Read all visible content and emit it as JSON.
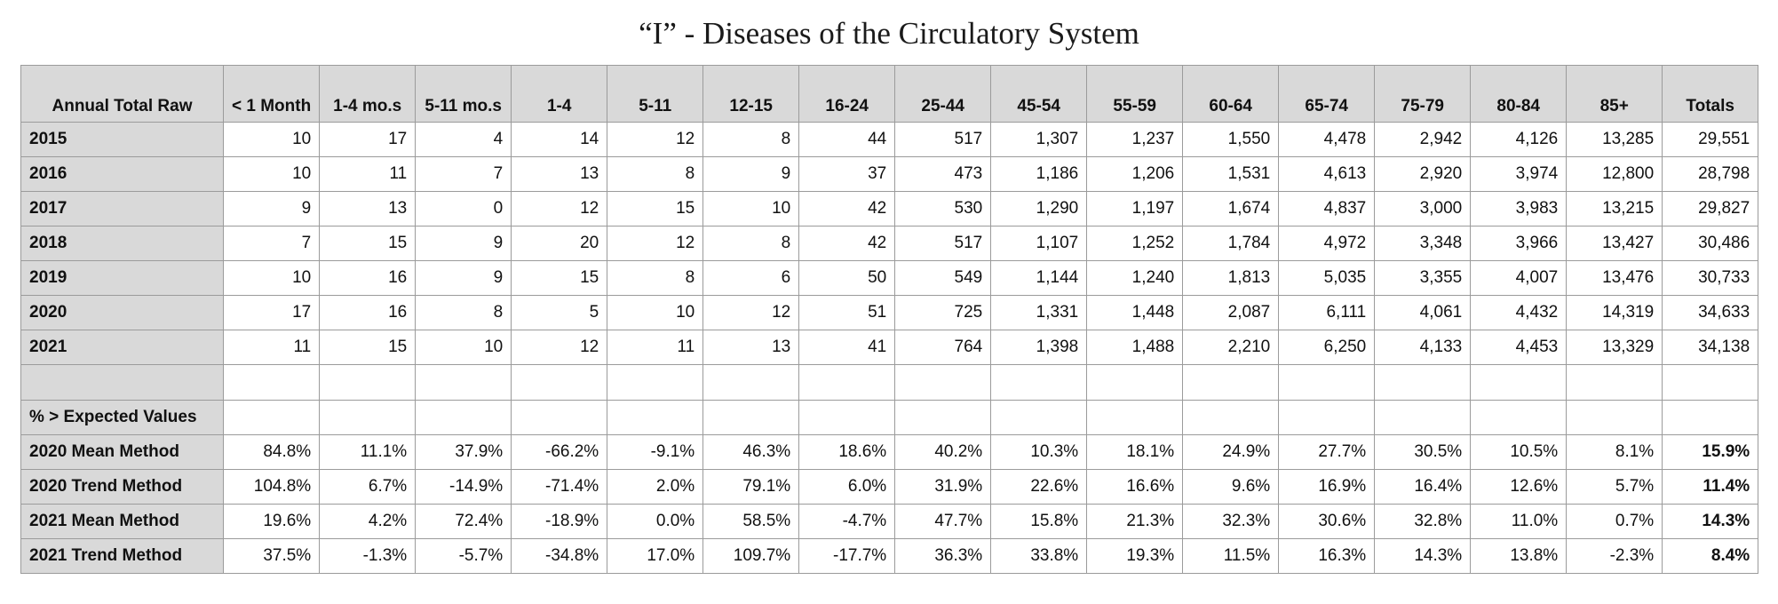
{
  "title": "“I” - Diseases of the Circulatory System",
  "table": {
    "corner_label": "Annual Total Raw",
    "columns": [
      "< 1\nMonth",
      "1-4 mo.s",
      "5-11\nmo.s",
      "1-4",
      "5-11",
      "12-15",
      "16-24",
      "25-44",
      "45-54",
      "55-59",
      "60-64",
      "65-74",
      "75-79",
      "80-84",
      "85+",
      "Totals"
    ],
    "raw_rows": [
      {
        "label": "2015",
        "values": [
          "10",
          "17",
          "4",
          "14",
          "12",
          "8",
          "44",
          "517",
          "1,307",
          "1,237",
          "1,550",
          "4,478",
          "2,942",
          "4,126",
          "13,285",
          "29,551"
        ]
      },
      {
        "label": "2016",
        "values": [
          "10",
          "11",
          "7",
          "13",
          "8",
          "9",
          "37",
          "473",
          "1,186",
          "1,206",
          "1,531",
          "4,613",
          "2,920",
          "3,974",
          "12,800",
          "28,798"
        ]
      },
      {
        "label": "2017",
        "values": [
          "9",
          "13",
          "0",
          "12",
          "15",
          "10",
          "42",
          "530",
          "1,290",
          "1,197",
          "1,674",
          "4,837",
          "3,000",
          "3,983",
          "13,215",
          "29,827"
        ]
      },
      {
        "label": "2018",
        "values": [
          "7",
          "15",
          "9",
          "20",
          "12",
          "8",
          "42",
          "517",
          "1,107",
          "1,252",
          "1,784",
          "4,972",
          "3,348",
          "3,966",
          "13,427",
          "30,486"
        ]
      },
      {
        "label": "2019",
        "values": [
          "10",
          "16",
          "9",
          "15",
          "8",
          "6",
          "50",
          "549",
          "1,144",
          "1,240",
          "1,813",
          "5,035",
          "3,355",
          "4,007",
          "13,476",
          "30,733"
        ]
      },
      {
        "label": "2020",
        "values": [
          "17",
          "16",
          "8",
          "5",
          "10",
          "12",
          "51",
          "725",
          "1,331",
          "1,448",
          "2,087",
          "6,111",
          "4,061",
          "4,432",
          "14,319",
          "34,633"
        ]
      },
      {
        "label": "2021",
        "values": [
          "11",
          "15",
          "10",
          "12",
          "11",
          "13",
          "41",
          "764",
          "1,398",
          "1,488",
          "2,210",
          "6,250",
          "4,133",
          "4,453",
          "13,329",
          "34,138"
        ]
      }
    ],
    "section_label": "% > Expected Values",
    "pct_rows": [
      {
        "label": "2020 Mean Method",
        "values": [
          "84.8%",
          "11.1%",
          "37.9%",
          "-66.2%",
          "-9.1%",
          "46.3%",
          "18.6%",
          "40.2%",
          "10.3%",
          "18.1%",
          "24.9%",
          "27.7%",
          "30.5%",
          "10.5%",
          "8.1%",
          "15.9%"
        ]
      },
      {
        "label": "2020 Trend Method",
        "values": [
          "104.8%",
          "6.7%",
          "-14.9%",
          "-71.4%",
          "2.0%",
          "79.1%",
          "6.0%",
          "31.9%",
          "22.6%",
          "16.6%",
          "9.6%",
          "16.9%",
          "16.4%",
          "12.6%",
          "5.7%",
          "11.4%"
        ]
      },
      {
        "label": "2021 Mean Method",
        "values": [
          "19.6%",
          "4.2%",
          "72.4%",
          "-18.9%",
          "0.0%",
          "58.5%",
          "-4.7%",
          "47.7%",
          "15.8%",
          "21.3%",
          "32.3%",
          "30.6%",
          "32.8%",
          "11.0%",
          "0.7%",
          "14.3%"
        ]
      },
      {
        "label": "2021 Trend Method",
        "values": [
          "37.5%",
          "-1.3%",
          "-5.7%",
          "-34.8%",
          "17.0%",
          "109.7%",
          "-17.7%",
          "36.3%",
          "33.8%",
          "19.3%",
          "11.5%",
          "16.3%",
          "14.3%",
          "13.8%",
          "-2.3%",
          "8.4%"
        ]
      }
    ]
  }
}
